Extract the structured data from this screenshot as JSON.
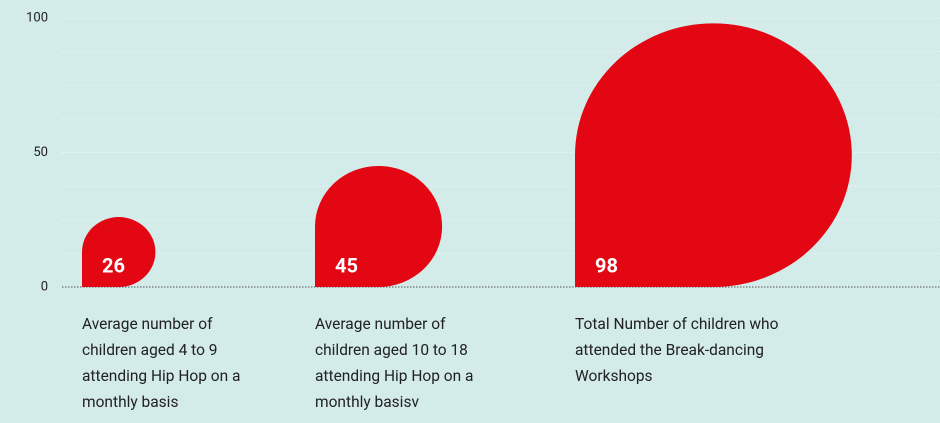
{
  "chart_data": {
    "type": "drop-bar",
    "categories": [
      "Average number of children aged 4 to 9 attending Hip Hop on a monthly basis",
      "Average number of children aged 10 to 18 attending Hip Hop on a monthly basisv",
      "Total Number of children who attended the Break-dancing Workshops"
    ],
    "values": [
      26,
      45,
      98
    ],
    "color": "#e30613",
    "ylim": [
      0,
      100
    ],
    "yticks": [
      0,
      50,
      100
    ],
    "yminorticks": [
      12.5,
      25,
      37.5,
      62.5,
      75,
      87.5
    ],
    "grid": true
  }
}
